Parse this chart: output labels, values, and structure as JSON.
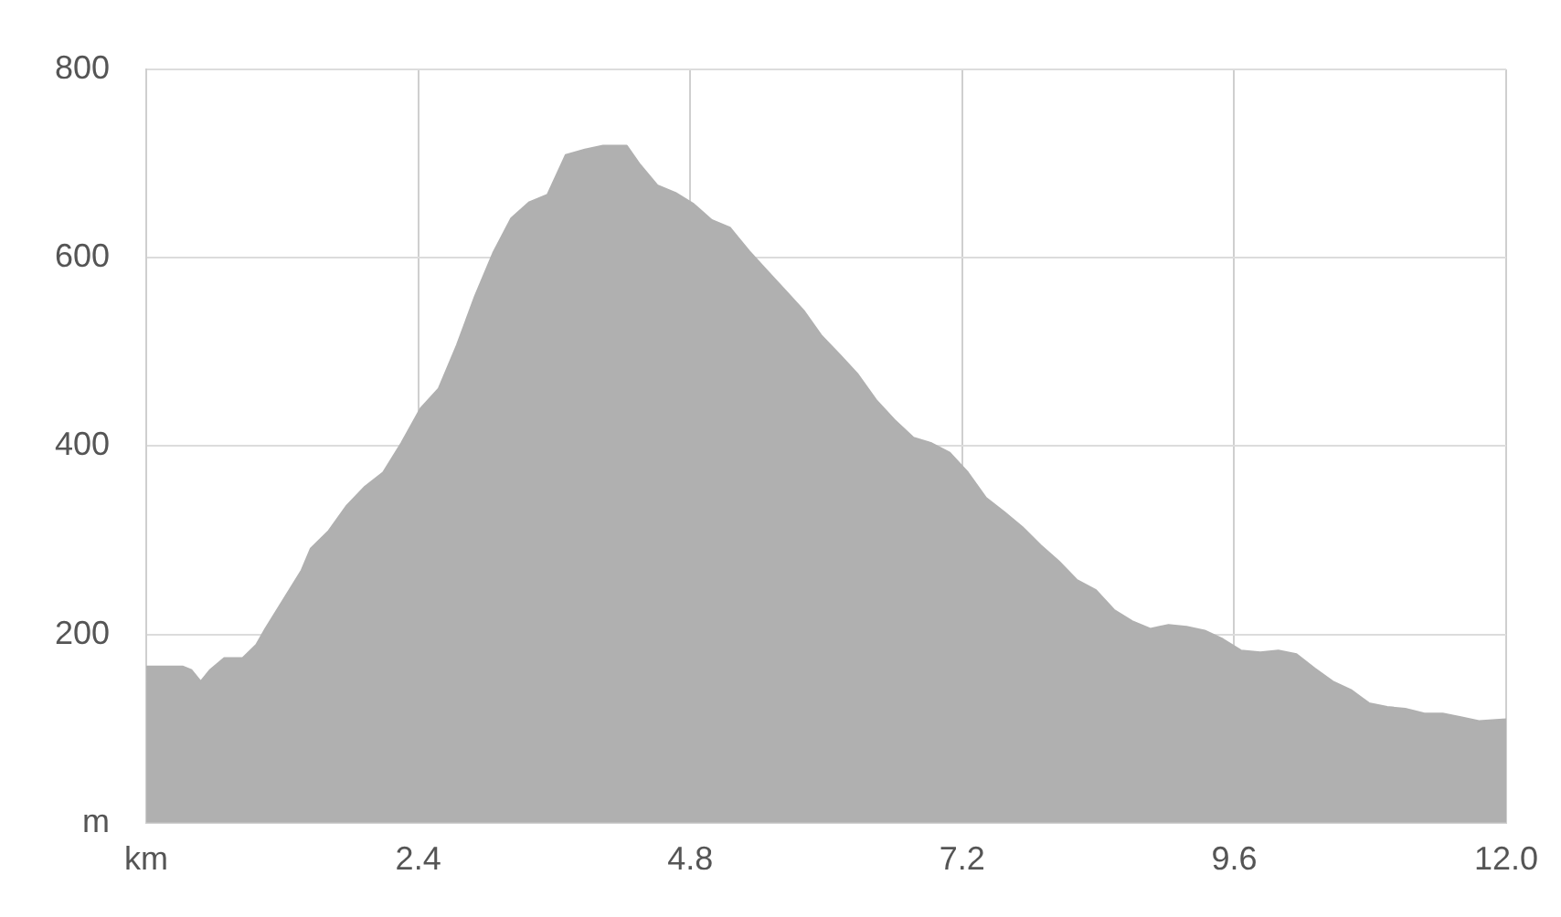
{
  "chart_data": {
    "type": "area",
    "xlim": [
      0,
      12
    ],
    "xticks": [
      {
        "value": 0,
        "label": "km"
      },
      2.4,
      4.8,
      7.2,
      9.6,
      {
        "value": 12,
        "label": "12.0"
      }
    ],
    "ylim": [
      0,
      800
    ],
    "yticks": [
      {
        "value": 0,
        "label": "m"
      },
      200,
      400,
      600,
      800
    ],
    "grid": true,
    "legend": false,
    "series": [
      {
        "color": "#b0b0b0",
        "x": [
          0,
          0.32,
          0.4,
          0.48,
          0.56,
          0.69,
          0.85,
          0.97,
          1.05,
          1.21,
          1.37,
          1.45,
          1.61,
          1.77,
          1.93,
          2.09,
          2.25,
          2.42,
          2.58,
          2.74,
          2.9,
          3.06,
          3.22,
          3.38,
          3.54,
          3.7,
          3.87,
          4.03,
          4.24,
          4.35,
          4.51,
          4.67,
          4.83,
          4.99,
          5.15,
          5.32,
          5.48,
          5.64,
          5.8,
          5.96,
          6.12,
          6.28,
          6.44,
          6.6,
          6.77,
          6.93,
          7.09,
          7.25,
          7.41,
          7.57,
          7.73,
          7.89,
          8.05,
          8.21,
          8.38,
          8.54,
          8.7,
          8.86,
          9.02,
          9.18,
          9.34,
          9.5,
          9.66,
          9.83,
          9.99,
          10.15,
          10.31,
          10.47,
          10.63,
          10.79,
          10.95,
          11.11,
          11.28,
          11.44,
          11.6,
          11.76,
          12
        ],
        "values": [
          166,
          166,
          162,
          150,
          162,
          175,
          175,
          189,
          206,
          237,
          268,
          291,
          310,
          337,
          357,
          372,
          403,
          440,
          461,
          507,
          559,
          605,
          642,
          659,
          667,
          709,
          715,
          719,
          719,
          700,
          677,
          669,
          657,
          640,
          632,
          607,
          586,
          565,
          544,
          517,
          497,
          476,
          449,
          428,
          409,
          403,
          393,
          372,
          345,
          330,
          314,
          295,
          278,
          258,
          247,
          226,
          214,
          206,
          210,
          208,
          204,
          195,
          183,
          181,
          183,
          179,
          164,
          150,
          141,
          127,
          123,
          121,
          116,
          116,
          112,
          108,
          110
        ]
      }
    ]
  }
}
